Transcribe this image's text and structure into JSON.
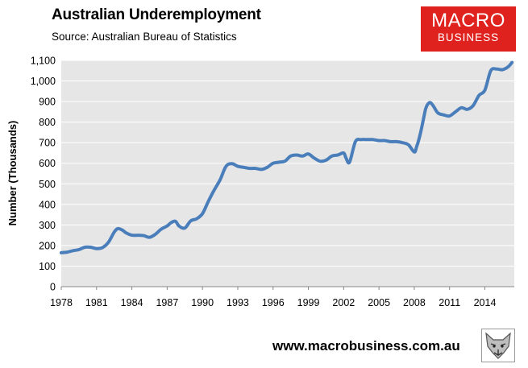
{
  "title": "Australian Underemployment",
  "subtitle": "Source: Australian Bureau of Statistics",
  "logo": {
    "line1": "MACRO",
    "line2": "BUSINESS",
    "color": "#e0221f"
  },
  "footer": {
    "url": "www.macrobusiness.com.au",
    "icon": "fox-logo-icon"
  },
  "colors": {
    "line": "#4a7ebb",
    "plot_bg": "#e6e6e6",
    "grid": "#ffffff"
  },
  "chart_data": {
    "type": "line",
    "title": "Australian Underemployment",
    "subtitle": "Source: Australian Bureau of Statistics",
    "xlabel": "",
    "ylabel": "Number (Thousands)",
    "xlim": [
      1978,
      2016.5
    ],
    "ylim": [
      0,
      1100
    ],
    "y_ticks": [
      0,
      100,
      200,
      300,
      400,
      500,
      600,
      700,
      800,
      900,
      1000,
      1100
    ],
    "y_tick_labels": [
      "0",
      "100",
      "200",
      "300",
      "400",
      "500",
      "600",
      "700",
      "800",
      "900",
      "1,000",
      "1,100"
    ],
    "x_ticks": [
      1978,
      1981,
      1984,
      1987,
      1990,
      1993,
      1996,
      1999,
      2002,
      2005,
      2008,
      2011,
      2014
    ],
    "x_tick_labels": [
      "1978",
      "1981",
      "1984",
      "1987",
      "1990",
      "1993",
      "1996",
      "1999",
      "2002",
      "2005",
      "2008",
      "2011",
      "2014"
    ],
    "grid": true,
    "legend": "none",
    "series": [
      {
        "x": [
          1978.0,
          1978.5,
          1979.0,
          1979.5,
          1980.0,
          1980.5,
          1981.0,
          1981.5,
          1982.0,
          1982.5,
          1982.8,
          1983.2,
          1983.5,
          1984.0,
          1984.5,
          1985.0,
          1985.5,
          1986.0,
          1986.5,
          1987.0,
          1987.3,
          1987.7,
          1988.0,
          1988.5,
          1989.0,
          1989.5,
          1990.0,
          1990.5,
          1991.0,
          1991.5,
          1992.0,
          1992.5,
          1993.0,
          1993.5,
          1994.0,
          1994.5,
          1995.0,
          1995.5,
          1996.0,
          1996.5,
          1997.0,
          1997.5,
          1998.0,
          1998.5,
          1999.0,
          1999.5,
          2000.0,
          2000.5,
          2001.0,
          2001.5,
          2002.0,
          2002.2,
          2002.5,
          2003.0,
          2003.5,
          2004.0,
          2004.5,
          2005.0,
          2005.5,
          2006.0,
          2006.5,
          2007.0,
          2007.5,
          2008.0,
          2008.2,
          2008.5,
          2008.8,
          2009.0,
          2009.3,
          2009.6,
          2010.0,
          2010.5,
          2011.0,
          2011.5,
          2012.0,
          2012.5,
          2013.0,
          2013.5,
          2014.0,
          2014.5,
          2015.0,
          2015.5,
          2016.0,
          2016.3
        ],
        "y": [
          165,
          168,
          175,
          180,
          192,
          192,
          185,
          190,
          215,
          265,
          282,
          275,
          262,
          250,
          250,
          248,
          240,
          255,
          280,
          295,
          310,
          318,
          295,
          285,
          320,
          330,
          355,
          415,
          470,
          520,
          585,
          598,
          585,
          580,
          575,
          575,
          570,
          580,
          600,
          605,
          610,
          635,
          640,
          635,
          645,
          625,
          610,
          615,
          635,
          640,
          650,
          625,
          605,
          705,
          715,
          715,
          715,
          710,
          710,
          705,
          705,
          700,
          690,
          655,
          680,
          740,
          820,
          870,
          895,
          880,
          845,
          835,
          830,
          850,
          870,
          862,
          880,
          930,
          955,
          1050,
          1058,
          1055,
          1070,
          1090
        ]
      }
    ]
  }
}
